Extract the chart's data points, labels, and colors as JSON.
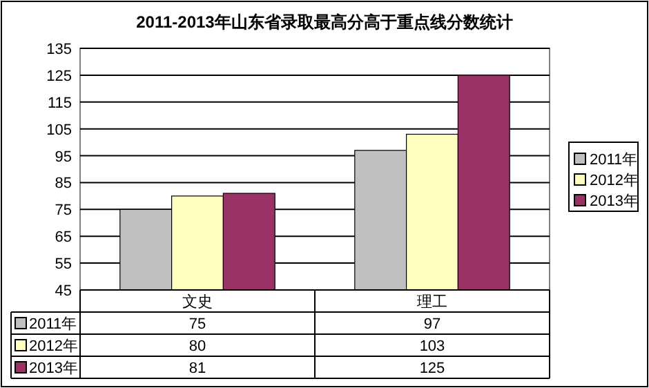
{
  "chart_data": {
    "type": "bar",
    "title": "2011-2013年山东省录取最高分高于重点线分数统计",
    "categories": [
      "文史",
      "理工"
    ],
    "series": [
      {
        "name": "2011年",
        "color": "#c0c0c0",
        "values": [
          75,
          97
        ]
      },
      {
        "name": "2012年",
        "color": "#ffffc0",
        "values": [
          80,
          103
        ]
      },
      {
        "name": "2013年",
        "color": "#993366",
        "values": [
          81,
          125
        ]
      }
    ],
    "ylim": [
      45,
      135
    ],
    "yticks": [
      45,
      55,
      65,
      75,
      85,
      95,
      105,
      115,
      125,
      135
    ],
    "grid": "y",
    "legend": "right",
    "data_labels": true
  }
}
